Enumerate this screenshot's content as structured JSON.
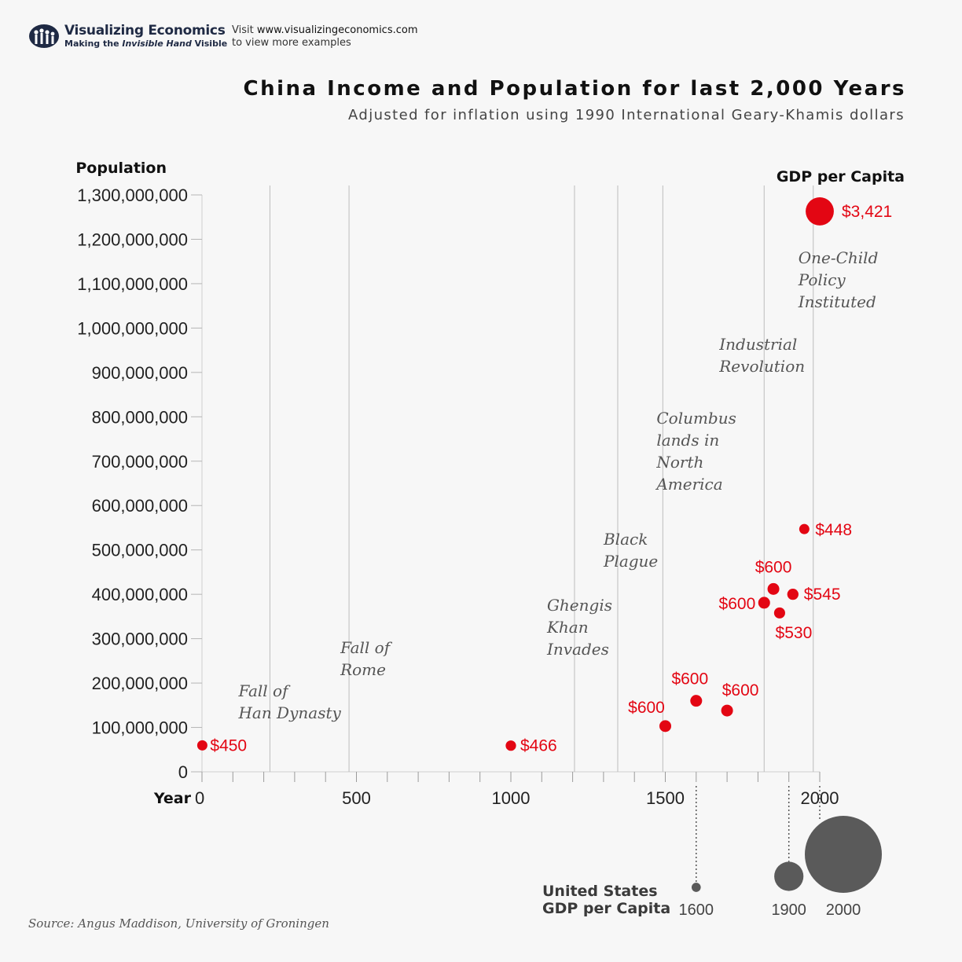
{
  "header": {
    "brand_name": "Visualizing Economics",
    "tagline_prefix": "Making the ",
    "tagline_italic": "Invisible Hand",
    "tagline_suffix": " Visible",
    "visit_prefix": "Visit ",
    "visit_url": "www.visualizingeconomics.com",
    "visit_suffix": "to view more examples"
  },
  "title": "China Income and Population for last 2,000 Years",
  "subtitle": "Adjusted for inflation using 1990 International Geary-Khamis dollars",
  "source": "Source: Angus Maddison, University of Groningen",
  "colors": {
    "china_points": "#e30613",
    "us_points": "#5a5a5a",
    "event_lines": "#bdbdbd",
    "annotation_text": "#555555"
  },
  "chart_data": {
    "type": "scatter",
    "title": "China Income and Population for last 2,000 Years",
    "ylabel": "Population",
    "xlabel": "Year",
    "size_label": "GDP per Capita",
    "xlim": [
      0,
      2000
    ],
    "ylim": [
      0,
      1300000000
    ],
    "x_ticks": [
      0,
      500,
      1000,
      1500,
      2000
    ],
    "y_ticks": [
      0,
      100000000,
      200000000,
      300000000,
      400000000,
      500000000,
      600000000,
      700000000,
      800000000,
      900000000,
      1000000000,
      1100000000,
      1200000000,
      1300000000
    ],
    "y_tick_labels": [
      "0",
      "100,000,000",
      "200,000,000",
      "300,000,000",
      "400,000,000",
      "500,000,000",
      "600,000,000",
      "700,000,000",
      "800,000,000",
      "900,000,000",
      "1,000,000,000",
      "1,100,000,000",
      "1,200,000,000",
      "1,300,000,000"
    ],
    "grid": false,
    "points": [
      {
        "x": 1,
        "y": 59600000,
        "gdp": 450,
        "label": "$450"
      },
      {
        "x": 1000,
        "y": 59000000,
        "gdp": 466,
        "label": "$466"
      },
      {
        "x": 1500,
        "y": 103000000,
        "gdp": 600,
        "label": "$600"
      },
      {
        "x": 1600,
        "y": 160000000,
        "gdp": 600,
        "label": "$600"
      },
      {
        "x": 1700,
        "y": 138000000,
        "gdp": 600,
        "label": "$600"
      },
      {
        "x": 1820,
        "y": 381000000,
        "gdp": 600,
        "label": "$600"
      },
      {
        "x": 1850,
        "y": 412000000,
        "gdp": 600,
        "label": "$600"
      },
      {
        "x": 1870,
        "y": 358000000,
        "gdp": 530,
        "label": "$530"
      },
      {
        "x": 1913,
        "y": 400000000,
        "gdp": 545,
        "label": "$545"
      },
      {
        "x": 1950,
        "y": 547000000,
        "gdp": 448,
        "label": "$448"
      },
      {
        "x": 2000,
        "y": 1263000000,
        "gdp": 3421,
        "label": "$3,421"
      }
    ],
    "events": [
      {
        "x": 220,
        "label": "Fall of Han Dynasty"
      },
      {
        "x": 476,
        "label": "Fall of Rome"
      },
      {
        "x": 1206,
        "label": "Ghengis Khan Invades"
      },
      {
        "x": 1346,
        "label": "Black Plague"
      },
      {
        "x": 1492,
        "label": "Columbus lands in North America"
      },
      {
        "x": 1820,
        "label": "Industrial Revolution"
      },
      {
        "x": 1979,
        "label": "One-Child Policy Instituted"
      }
    ],
    "us_comparison": {
      "label": "United States GDP per Capita",
      "points": [
        {
          "x": 1600,
          "label": "1600",
          "gdp": 400
        },
        {
          "x": 1900,
          "label": "1900",
          "gdp": 4091
        },
        {
          "x": 2000,
          "label": "2000",
          "gdp": 28403
        }
      ]
    }
  }
}
